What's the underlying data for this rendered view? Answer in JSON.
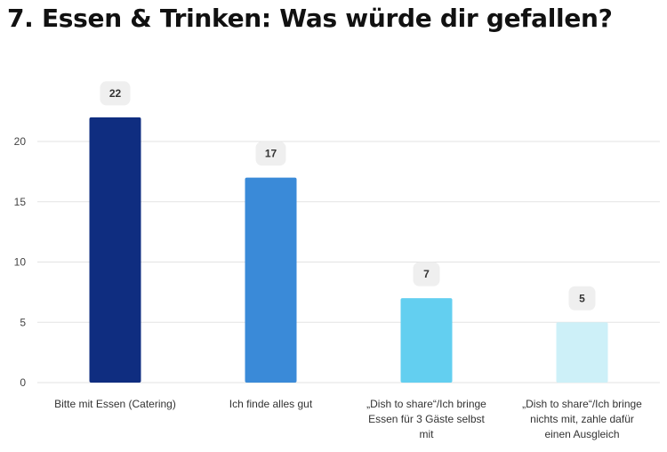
{
  "title": "7. Essen & Trinken: Was würde dir gefallen?",
  "chart_data": {
    "type": "bar",
    "title": "7. Essen & Trinken: Was würde dir gefallen?",
    "xlabel": "",
    "ylabel": "",
    "ylim": [
      0,
      25
    ],
    "yticks": [
      0,
      5,
      10,
      15,
      20
    ],
    "grid": true,
    "legend": "none",
    "categories": [
      "Bitte mit Essen (Catering)",
      "Ich finde alles gut",
      "„Dish to share“/Ich bringe Essen für 3 Gäste selbst mit",
      "„Dish to share“/Ich bringe nichts mit, zahle dafür einen Ausgleich"
    ],
    "category_lines": [
      [
        "Bitte mit Essen (Catering)"
      ],
      [
        "Ich finde alles gut"
      ],
      [
        "„Dish to share“/Ich bringe",
        "Essen für 3 Gäste selbst",
        "mit"
      ],
      [
        "„Dish to share“/Ich bringe",
        "nichts mit, zahle dafür",
        "einen Ausgleich"
      ]
    ],
    "values": [
      22,
      17,
      7,
      5
    ],
    "colors": [
      "#0f2d80",
      "#3a8ad8",
      "#63cff0",
      "#cdf0f8"
    ],
    "label_bg": "#efefef",
    "grid_color": "#e3e3e3"
  }
}
